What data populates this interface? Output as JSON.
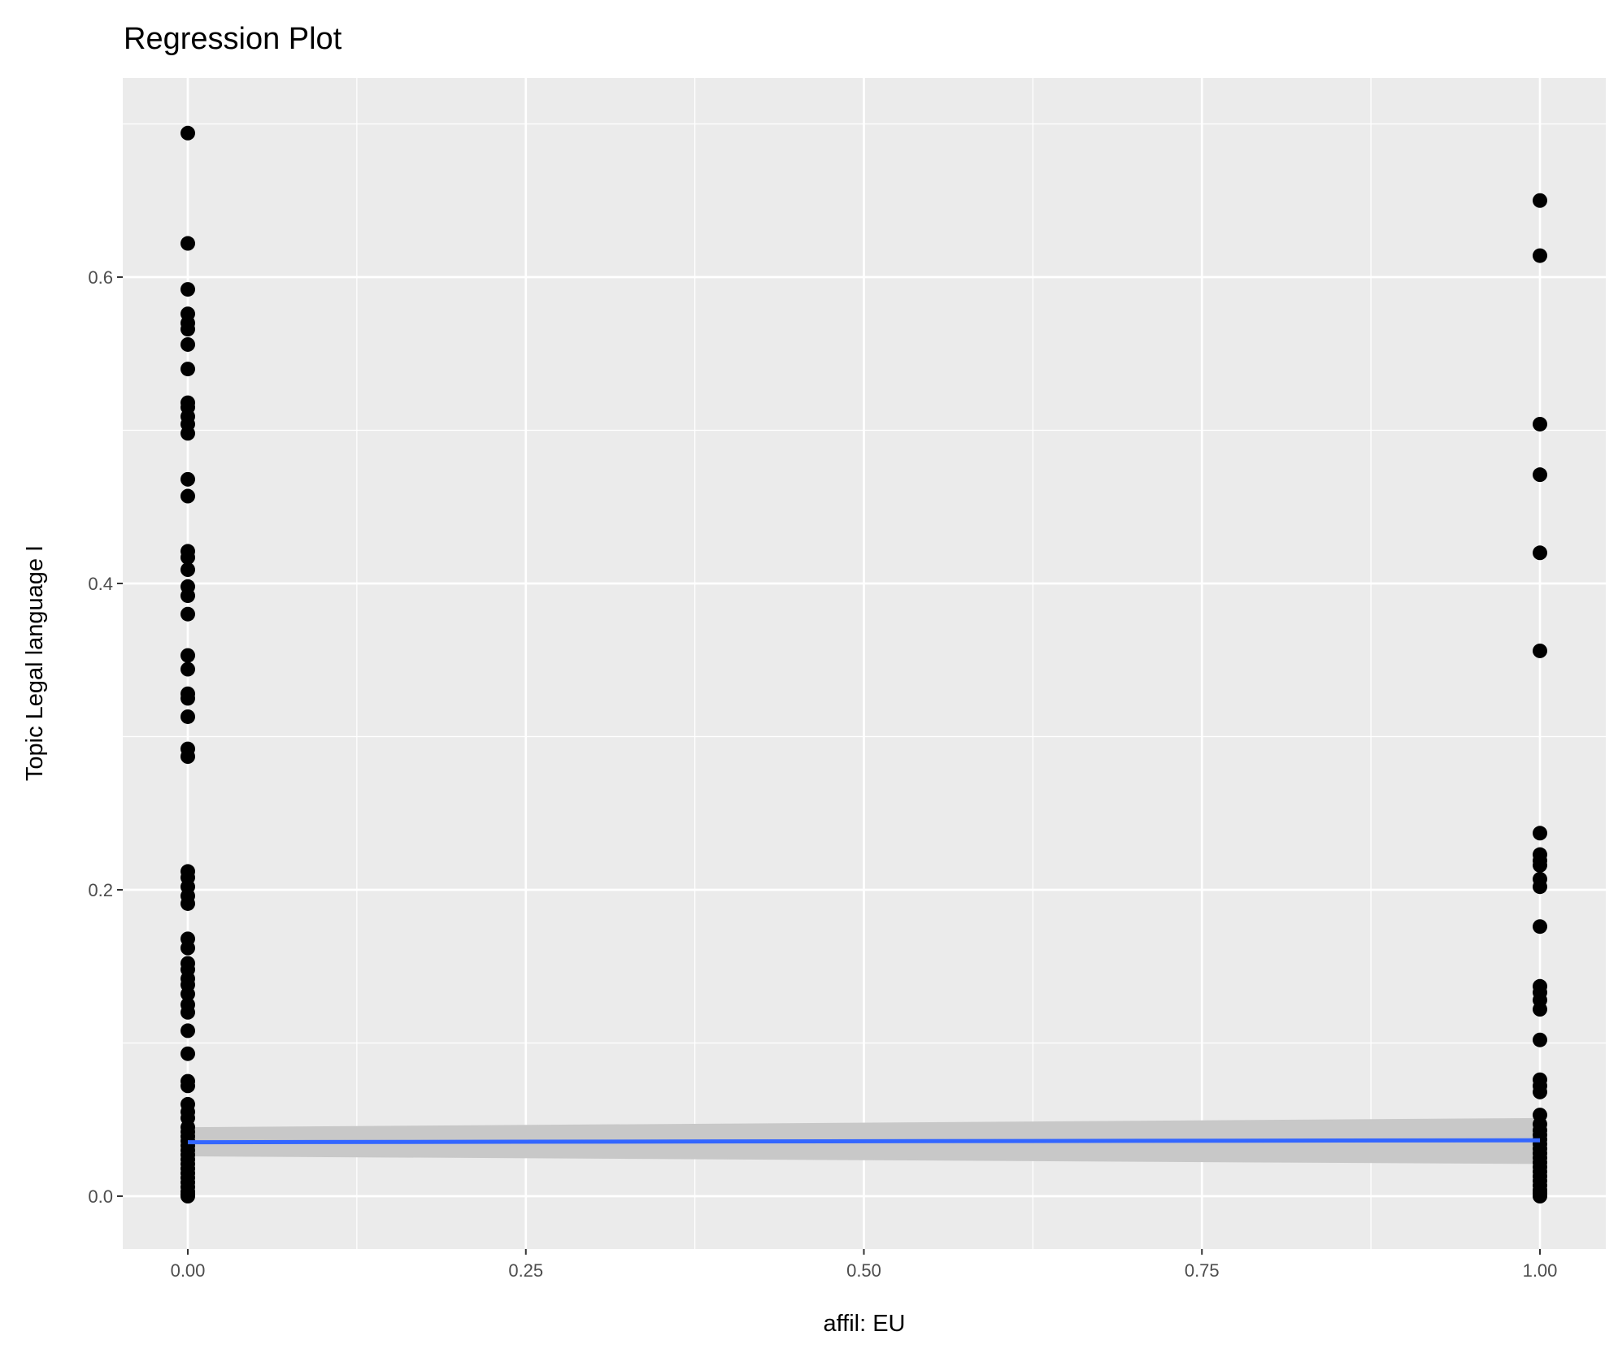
{
  "chart_data": {
    "type": "scatter",
    "title": "Regression Plot",
    "xlabel": "affil: EU",
    "ylabel": "Topic Legal language I",
    "xlim": [
      -0.05,
      1.05
    ],
    "ylim": [
      -0.035,
      0.73
    ],
    "x_ticks": [
      0,
      0.25,
      0.5,
      0.75,
      1
    ],
    "x_tick_labels": [
      "0.00",
      "0.25",
      "0.50",
      "0.75",
      "1.00"
    ],
    "y_ticks": [
      0,
      0.2,
      0.4,
      0.6
    ],
    "y_tick_labels": [
      "0.0",
      "0.2",
      "0.4",
      "0.6"
    ],
    "grid": true,
    "background": "#EBEBEB",
    "point_color": "#000000",
    "line_color": "#3366FF",
    "band_color": "#C8C8C8",
    "series": [
      {
        "x": 0,
        "y": [
          0.694,
          0.622,
          0.592,
          0.576,
          0.57,
          0.566,
          0.556,
          0.54,
          0.518,
          0.515,
          0.509,
          0.504,
          0.498,
          0.468,
          0.457,
          0.421,
          0.417,
          0.409,
          0.398,
          0.392,
          0.38,
          0.353,
          0.344,
          0.328,
          0.325,
          0.313,
          0.292,
          0.287,
          0.212,
          0.208,
          0.202,
          0.196,
          0.191,
          0.168,
          0.162,
          0.152,
          0.148,
          0.142,
          0.138,
          0.132,
          0.125,
          0.12,
          0.108,
          0.093,
          0.075,
          0.072,
          0.06,
          0.055,
          0.051,
          0.045,
          0.042,
          0.039,
          0.036,
          0.033,
          0.03,
          0.027,
          0.024,
          0.021,
          0.018,
          0.015,
          0.012,
          0.009,
          0.006,
          0.003,
          0.001,
          0.0
        ]
      },
      {
        "x": 1,
        "y": [
          0.65,
          0.614,
          0.504,
          0.471,
          0.42,
          0.356,
          0.237,
          0.223,
          0.219,
          0.216,
          0.207,
          0.202,
          0.176,
          0.137,
          0.133,
          0.128,
          0.122,
          0.102,
          0.076,
          0.072,
          0.068,
          0.053,
          0.047,
          0.043,
          0.04,
          0.037,
          0.034,
          0.031,
          0.028,
          0.025,
          0.022,
          0.019,
          0.016,
          0.013,
          0.01,
          0.007,
          0.004,
          0.002,
          0.0
        ]
      }
    ],
    "regression": {
      "x": [
        0,
        1
      ],
      "y": [
        0.0352,
        0.0365
      ],
      "ci_low": [
        0.026,
        0.021
      ],
      "ci_high": [
        0.045,
        0.051
      ]
    }
  }
}
